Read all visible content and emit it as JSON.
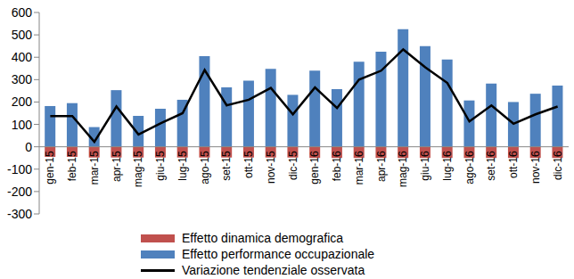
{
  "chart_data": {
    "type": "bar",
    "stacked": true,
    "categories": [
      "gen-15",
      "feb-15",
      "mar-15",
      "apr-15",
      "mag-15",
      "giu-15",
      "lug-15",
      "ago-15",
      "set-15",
      "ott-15",
      "nov-15",
      "dic-15",
      "gen-16",
      "feb-16",
      "mar-16",
      "apr-16",
      "mag-16",
      "giu-16",
      "lug-16",
      "ago-16",
      "set-16",
      "ott-16",
      "nov-16",
      "dic-16"
    ],
    "series": [
      {
        "name": "Effetto dinamica demografica",
        "type": "bar",
        "color": "#c0504d",
        "values": [
          -45,
          -45,
          -48,
          -48,
          -48,
          -48,
          -48,
          -48,
          -48,
          -48,
          -48,
          -48,
          -50,
          -50,
          -50,
          -50,
          -50,
          -50,
          -50,
          -50,
          -50,
          -50,
          -50,
          -50
        ]
      },
      {
        "name": "Effetto performance occupazionale",
        "type": "bar",
        "color": "#4f81bd",
        "values": [
          182,
          195,
          88,
          253,
          138,
          170,
          210,
          405,
          265,
          295,
          348,
          232,
          340,
          258,
          380,
          425,
          525,
          450,
          390,
          207,
          282,
          200,
          237,
          273
        ]
      },
      {
        "name": "Variazione tendenziale osservata",
        "type": "line",
        "color": "#000000",
        "values": [
          137,
          137,
          22,
          180,
          55,
          105,
          150,
          343,
          185,
          210,
          263,
          145,
          265,
          173,
          300,
          340,
          435,
          355,
          285,
          113,
          185,
          103,
          145,
          180
        ]
      }
    ],
    "ylim": [
      -300,
      600
    ],
    "yticks": [
      -300,
      -200,
      -100,
      0,
      100,
      200,
      300,
      400,
      500,
      600
    ],
    "legend": "bottom",
    "grid": false
  }
}
